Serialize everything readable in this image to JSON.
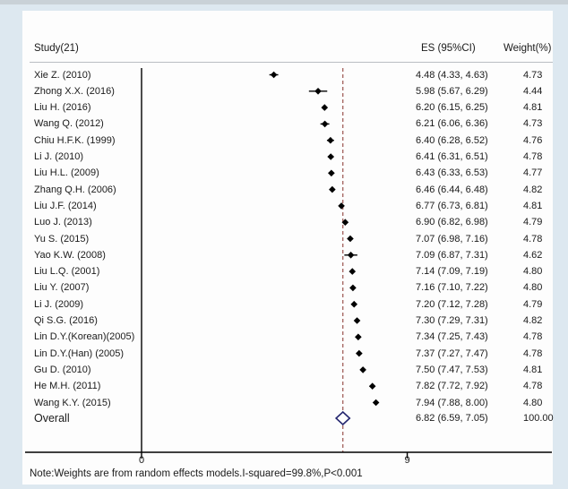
{
  "header": {
    "study": "Study(21)",
    "es": "ES (95%CI)",
    "weight": "Weight(%)"
  },
  "note": "Note:Weights are from random effects models.I-squared=99.8%,P<0.001",
  "chart_data": {
    "type": "forest",
    "title": "",
    "xlabel": "",
    "x_ticks": [
      "0",
      "9"
    ],
    "x_tick_values": [
      0,
      9
    ],
    "xlim": [
      -4.8,
      9.6
    ],
    "dashed_line_x": 6.82,
    "grid": false,
    "studies": [
      {
        "label": "Xie Z. (2010)",
        "es": 4.48,
        "ci": [
          4.33,
          4.63
        ],
        "weight": 4.73,
        "es_ci_label": "4.48 (4.33, 4.63)",
        "weight_label": "4.73"
      },
      {
        "label": "Zhong X.X. (2016)",
        "es": 5.98,
        "ci": [
          5.67,
          6.29
        ],
        "weight": 4.44,
        "es_ci_label": "5.98 (5.67, 6.29)",
        "weight_label": "4.44"
      },
      {
        "label": "Liu H. (2016)",
        "es": 6.2,
        "ci": [
          6.15,
          6.25
        ],
        "weight": 4.81,
        "es_ci_label": "6.20 (6.15, 6.25)",
        "weight_label": "4.81"
      },
      {
        "label": "Wang Q. (2012)",
        "es": 6.21,
        "ci": [
          6.06,
          6.36
        ],
        "weight": 4.73,
        "es_ci_label": "6.21 (6.06, 6.36)",
        "weight_label": "4.73"
      },
      {
        "label": "Chiu H.F.K. (1999)",
        "es": 6.4,
        "ci": [
          6.28,
          6.52
        ],
        "weight": 4.76,
        "es_ci_label": "6.40 (6.28, 6.52)",
        "weight_label": "4.76"
      },
      {
        "label": "Li J. (2010)",
        "es": 6.41,
        "ci": [
          6.31,
          6.51
        ],
        "weight": 4.78,
        "es_ci_label": "6.41 (6.31, 6.51)",
        "weight_label": "4.78"
      },
      {
        "label": "Liu H.L. (2009)",
        "es": 6.43,
        "ci": [
          6.33,
          6.53
        ],
        "weight": 4.77,
        "es_ci_label": "6.43 (6.33, 6.53)",
        "weight_label": "4.77"
      },
      {
        "label": "Zhang Q.H. (2006)",
        "es": 6.46,
        "ci": [
          6.44,
          6.48
        ],
        "weight": 4.82,
        "es_ci_label": "6.46 (6.44, 6.48)",
        "weight_label": "4.82"
      },
      {
        "label": "Liu J.F. (2014)",
        "es": 6.77,
        "ci": [
          6.73,
          6.81
        ],
        "weight": 4.81,
        "es_ci_label": "6.77 (6.73, 6.81)",
        "weight_label": "4.81"
      },
      {
        "label": "Luo J. (2013)",
        "es": 6.9,
        "ci": [
          6.82,
          6.98
        ],
        "weight": 4.79,
        "es_ci_label": "6.90 (6.82, 6.98)",
        "weight_label": "4.79"
      },
      {
        "label": "Yu S. (2015)",
        "es": 7.07,
        "ci": [
          6.98,
          7.16
        ],
        "weight": 4.78,
        "es_ci_label": "7.07 (6.98, 7.16)",
        "weight_label": "4.78"
      },
      {
        "label": "Yao K.W. (2008)",
        "es": 7.09,
        "ci": [
          6.87,
          7.31
        ],
        "weight": 4.62,
        "es_ci_label": "7.09 (6.87, 7.31)",
        "weight_label": "4.62"
      },
      {
        "label": "Liu L.Q. (2001)",
        "es": 7.14,
        "ci": [
          7.09,
          7.19
        ],
        "weight": 4.8,
        "es_ci_label": "7.14 (7.09, 7.19)",
        "weight_label": "4.80"
      },
      {
        "label": "Liu Y. (2007)",
        "es": 7.16,
        "ci": [
          7.1,
          7.22
        ],
        "weight": 4.8,
        "es_ci_label": "7.16 (7.10, 7.22)",
        "weight_label": "4.80"
      },
      {
        "label": "Li J. (2009)",
        "es": 7.2,
        "ci": [
          7.12,
          7.28
        ],
        "weight": 4.79,
        "es_ci_label": "7.20 (7.12, 7.28)",
        "weight_label": "4.79"
      },
      {
        "label": "Qi S.G. (2016)",
        "es": 7.3,
        "ci": [
          7.29,
          7.31
        ],
        "weight": 4.82,
        "es_ci_label": "7.30 (7.29, 7.31)",
        "weight_label": "4.82"
      },
      {
        "label": "Lin D.Y.(Korean)(2005)",
        "es": 7.34,
        "ci": [
          7.25,
          7.43
        ],
        "weight": 4.78,
        "es_ci_label": "7.34 (7.25, 7.43)",
        "weight_label": "4.78"
      },
      {
        "label": "Lin D.Y.(Han) (2005)",
        "es": 7.37,
        "ci": [
          7.27,
          7.47
        ],
        "weight": 4.78,
        "es_ci_label": "7.37 (7.27, 7.47)",
        "weight_label": "4.78"
      },
      {
        "label": "Gu D. (2010)",
        "es": 7.5,
        "ci": [
          7.47,
          7.53
        ],
        "weight": 4.81,
        "es_ci_label": "7.50 (7.47, 7.53)",
        "weight_label": "4.81"
      },
      {
        "label": "He M.H. (2011)",
        "es": 7.82,
        "ci": [
          7.72,
          7.92
        ],
        "weight": 4.78,
        "es_ci_label": "7.82 (7.72, 7.92)",
        "weight_label": "4.78"
      },
      {
        "label": "Wang K.Y. (2015)",
        "es": 7.94,
        "ci": [
          7.88,
          8.0
        ],
        "weight": 4.8,
        "es_ci_label": "7.94 (7.88, 8.00)",
        "weight_label": "4.80"
      }
    ],
    "overall": {
      "label": "Overall",
      "es": 6.82,
      "ci": [
        6.59,
        7.05
      ],
      "weight": 100.0,
      "es_ci_label": "6.82 (6.59, 7.05)",
      "weight_label": "100.00"
    },
    "colors": {
      "background": "#dde8f0",
      "plot_background": "#fdfdfd",
      "axis": "#000000",
      "marker": "#000000",
      "dashed_line": "#9a544f",
      "diamond_outline": "#23256e",
      "text": "#1a1a1a"
    },
    "legend": "none"
  }
}
